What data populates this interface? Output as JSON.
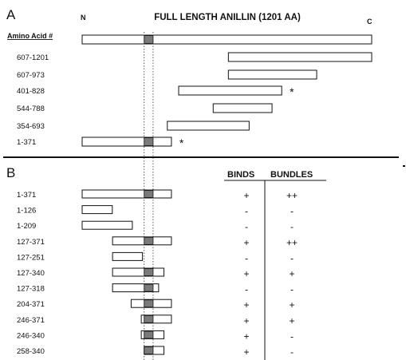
{
  "panelA": {
    "letter": "A",
    "n_label": "N",
    "c_label": "C",
    "title": "FULL LENGTH ANILLIN (1201  AA)",
    "header": "Amino Acid #",
    "rows": [
      {
        "label": "",
        "start": 1,
        "end": 1201,
        "mark": ""
      },
      {
        "label": "607-1201",
        "start": 607,
        "end": 1201,
        "mark": ""
      },
      {
        "label": "607-973",
        "start": 607,
        "end": 973,
        "mark": ""
      },
      {
        "label": "401-828",
        "start": 401,
        "end": 828,
        "mark": "*"
      },
      {
        "label": "544-788",
        "start": 544,
        "end": 788,
        "mark": ""
      },
      {
        "label": "354-693",
        "start": 354,
        "end": 693,
        "mark": ""
      },
      {
        "label": "1-371",
        "start": 1,
        "end": 371,
        "mark": "*"
      }
    ]
  },
  "panelB": {
    "letter": "B",
    "col_binds": "BINDS",
    "col_bundles": "BUNDLES",
    "rows": [
      {
        "label": "1-371",
        "start": 1,
        "end": 371,
        "binds": "+",
        "bundles": "++"
      },
      {
        "label": "1-126",
        "start": 1,
        "end": 126,
        "binds": "-",
        "bundles": "-"
      },
      {
        "label": "1-209",
        "start": 1,
        "end": 209,
        "binds": "-",
        "bundles": "-"
      },
      {
        "label": "127-371",
        "start": 127,
        "end": 371,
        "binds": "+",
        "bundles": "++"
      },
      {
        "label": "127-251",
        "start": 127,
        "end": 251,
        "binds": "-",
        "bundles": "-"
      },
      {
        "label": "127-340",
        "start": 127,
        "end": 340,
        "binds": "+",
        "bundles": "+"
      },
      {
        "label": "127-318",
        "start": 127,
        "end": 318,
        "binds": "-",
        "bundles": "-"
      },
      {
        "label": "204-371",
        "start": 204,
        "end": 371,
        "binds": "+",
        "bundles": "+"
      },
      {
        "label": "246-371",
        "start": 246,
        "end": 371,
        "binds": "+",
        "bundles": "+"
      },
      {
        "label": "246-340",
        "start": 246,
        "end": 340,
        "binds": "+",
        "bundles": "-"
      },
      {
        "label": "258-340",
        "start": 258,
        "end": 340,
        "binds": "+",
        "bundles": "-"
      }
    ]
  },
  "binding_domain": {
    "start": 258,
    "end": 295
  },
  "colors": {
    "domain_fill": "#7a7a7a",
    "line": "#111111"
  }
}
